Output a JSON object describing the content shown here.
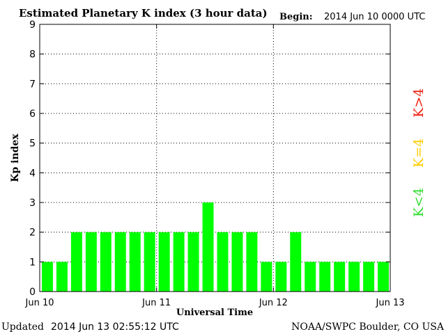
{
  "chart_data": {
    "type": "bar",
    "title": "Estimated Planetary K index (3 hour data)",
    "begin_label": "Begin:",
    "begin_value": "2014 Jun 10 0000 UTC",
    "ylabel": "Kp index",
    "xlabel": "Universal Time",
    "ylim": [
      0,
      9
    ],
    "yticks": [
      "0",
      "1",
      "2",
      "3",
      "4",
      "5",
      "6",
      "7",
      "8",
      "9"
    ],
    "xticks": [
      "Jun 10",
      "Jun 11",
      "Jun 12",
      "Jun 13"
    ],
    "values": [
      1,
      1,
      2,
      2,
      2,
      2,
      2,
      2,
      2,
      2,
      2,
      3,
      2,
      2,
      2,
      1,
      1,
      2,
      1,
      1,
      1,
      1,
      1,
      1
    ],
    "bar_color": "#00ff00",
    "legend": [
      {
        "label": "K<4",
        "color": "#33dd33"
      },
      {
        "label": "K=4",
        "color": "#ffcc00"
      },
      {
        "label": "K>4",
        "color": "#ee2211"
      }
    ],
    "grid": "dotted-vertical-at-day-boundaries-and-horizontal-at-integers"
  },
  "footer": {
    "updated_label": "Updated",
    "updated_value": "2014 Jun 13 02:55:12 UTC",
    "source": "NOAA/SWPC Boulder, CO USA"
  }
}
